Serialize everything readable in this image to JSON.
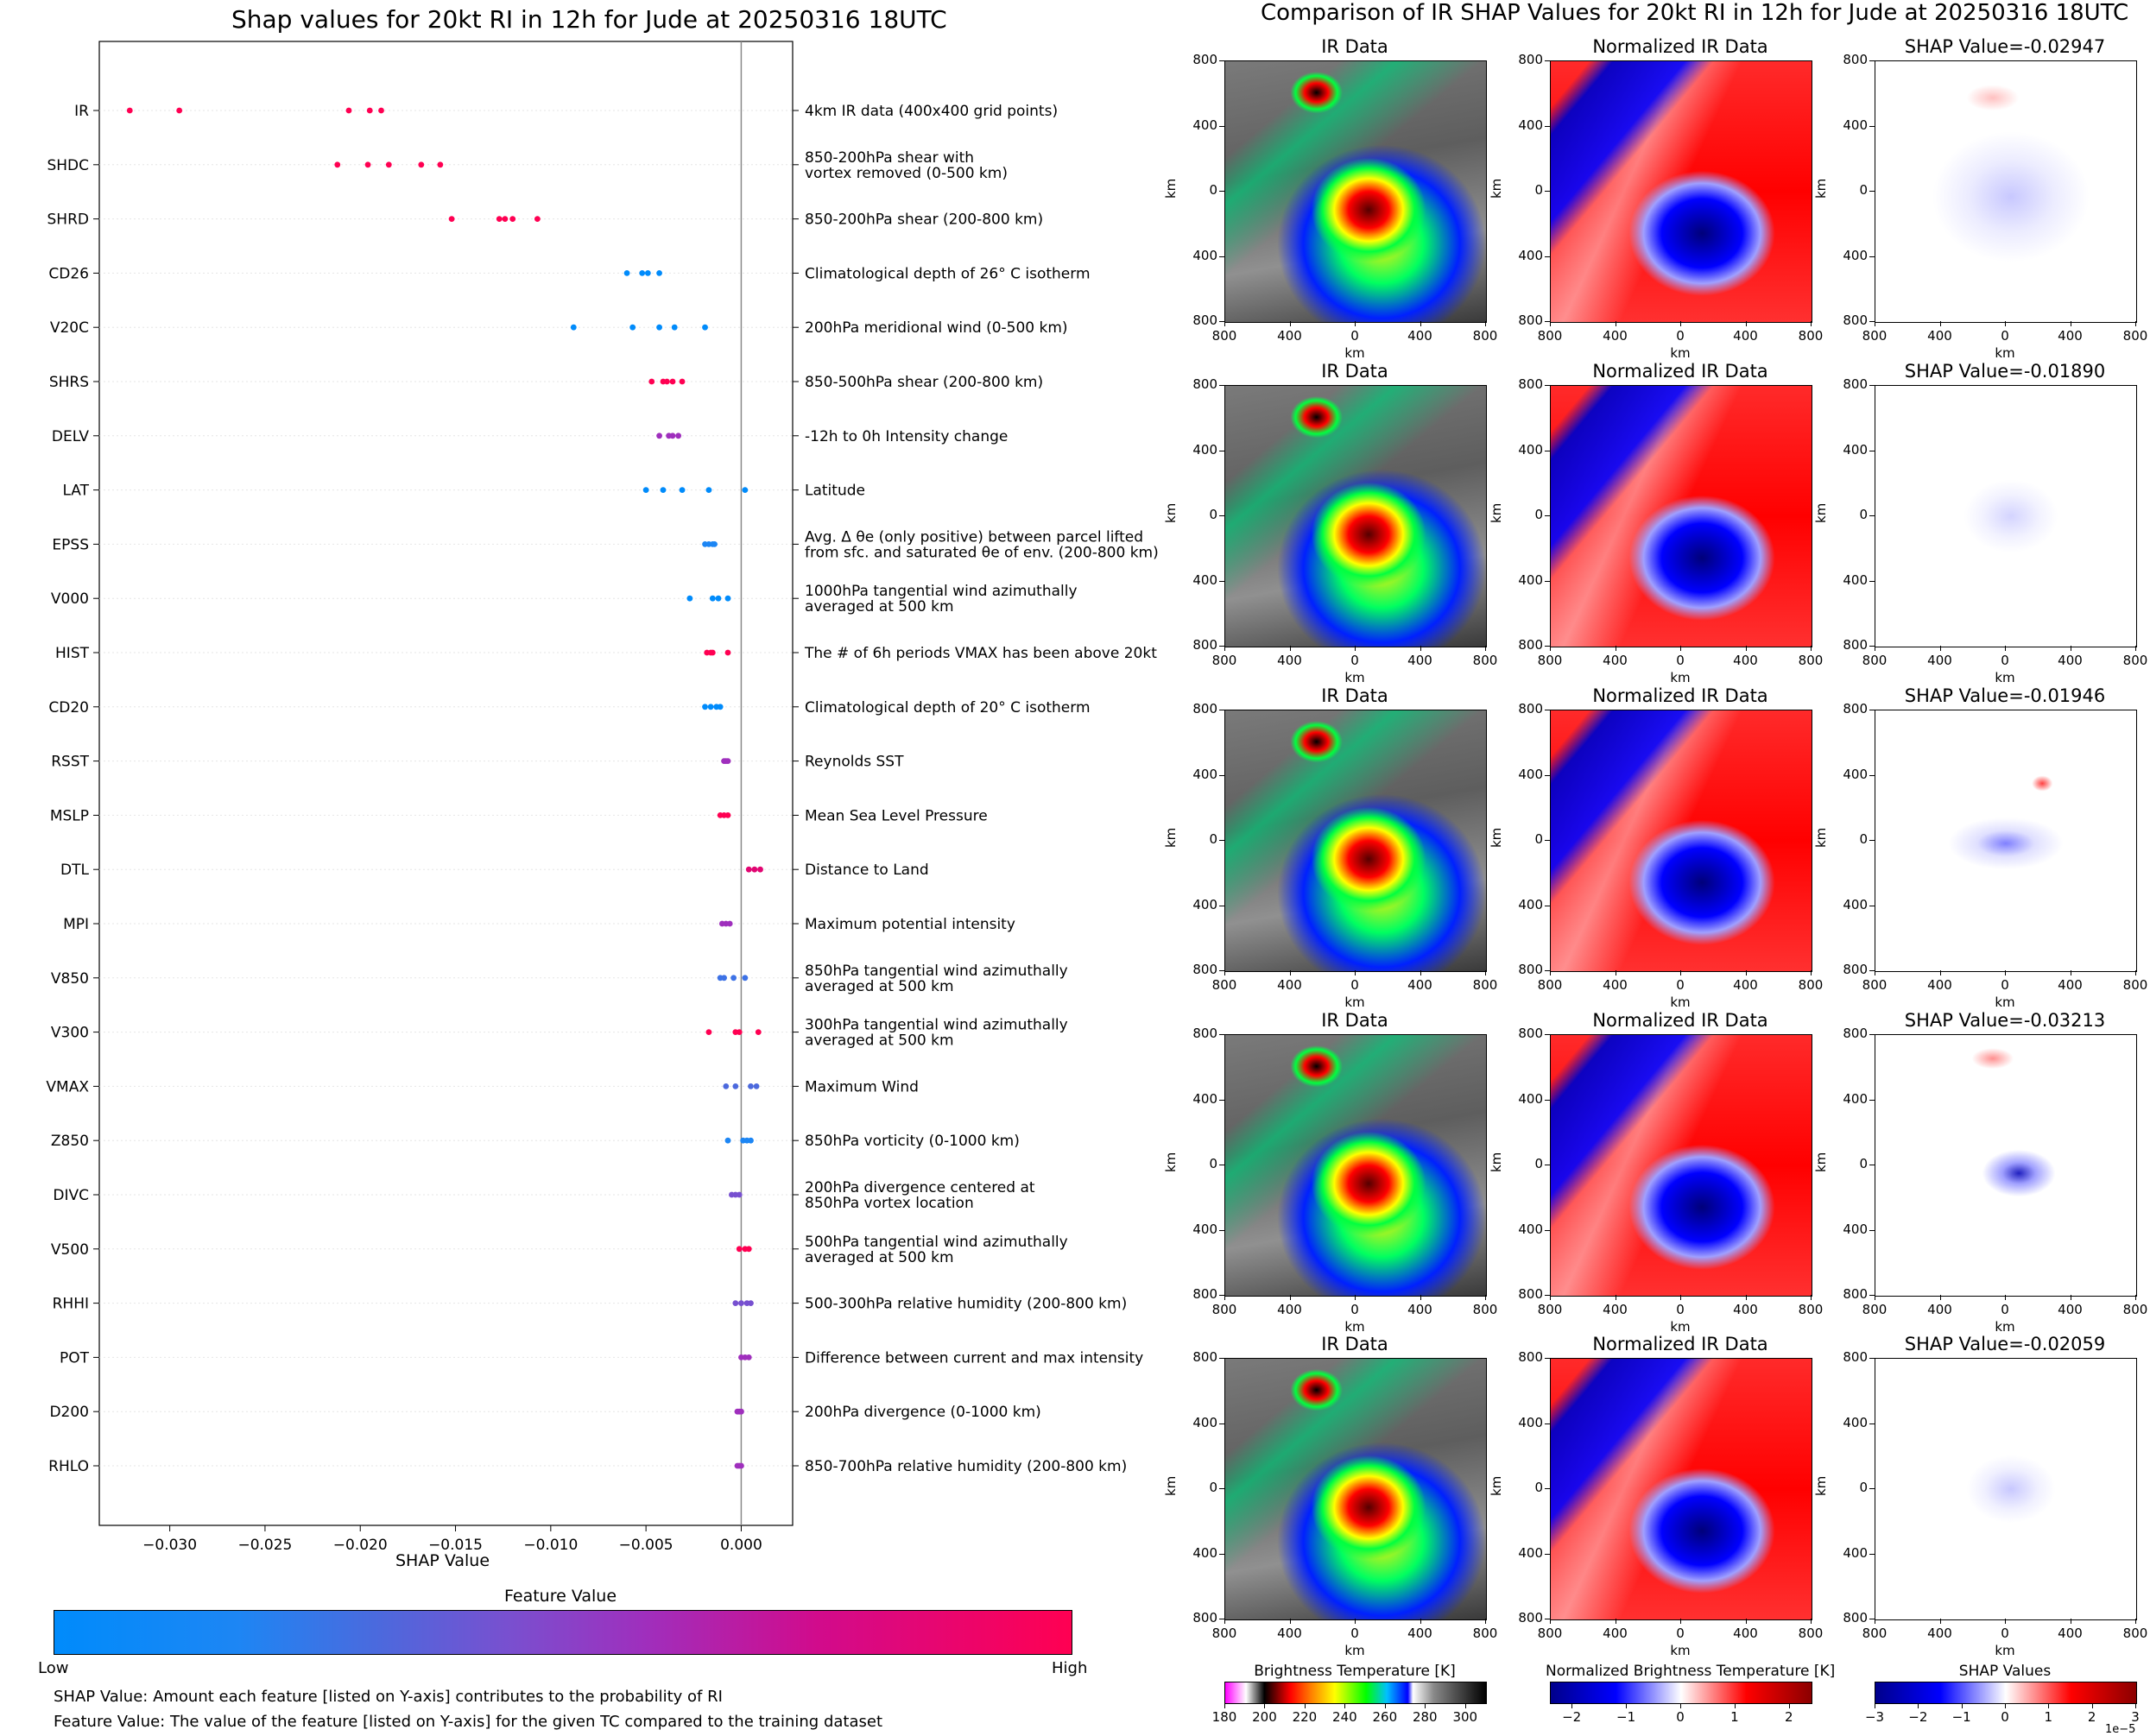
{
  "left_title": "Shap values for 20kt RI in 12h for Jude at 20250316 18UTC",
  "right_title": "Comparison of IR SHAP Values for 20kt RI in 12h for Jude at 20250316 18UTC",
  "chart_data": [
    {
      "type": "scatter",
      "title": "Shap values for 20kt RI in 12h for Jude at 20250316 18UTC",
      "xlabel": "SHAP Value",
      "xlim": [
        -0.0337,
        0.0027
      ],
      "xticks": [
        "−0.030",
        "−0.025",
        "−0.020",
        "−0.015",
        "−0.010",
        "−0.005",
        "0.000"
      ],
      "colorbar": {
        "title": "Feature Value",
        "low_label": "Low",
        "high_label": "High",
        "low_color": "#008bfb",
        "high_color": "#ff0052"
      },
      "features": [
        {
          "name": "IR",
          "desc": "4km IR data (400x400 grid points)",
          "color": "#ff0052",
          "shap": [
            -0.0321,
            -0.0295,
            -0.0206,
            -0.0195,
            -0.0189
          ]
        },
        {
          "name": "SHDC",
          "desc": "850-200hPa shear with\nvortex removed (0-500 km)",
          "color": "#ff0052",
          "shap": [
            -0.0212,
            -0.0196,
            -0.0185,
            -0.0168,
            -0.0158
          ]
        },
        {
          "name": "SHRD",
          "desc": "850-200hPa shear (200-800 km)",
          "color": "#ff0052",
          "shap": [
            -0.0152,
            -0.0127,
            -0.0124,
            -0.012,
            -0.0107
          ]
        },
        {
          "name": "CD26",
          "desc": "Climatological depth of 26° C isotherm",
          "color": "#008bfb",
          "shap": [
            -0.006,
            -0.0052,
            -0.0049,
            -0.0043
          ]
        },
        {
          "name": "V20C",
          "desc": "200hPa meridional wind (0-500 km)",
          "color": "#008bfb",
          "shap": [
            -0.0088,
            -0.0057,
            -0.0043,
            -0.0035,
            -0.0019
          ]
        },
        {
          "name": "SHRS",
          "desc": "850-500hPa shear (200-800 km)",
          "color": "#ff0052",
          "shap": [
            -0.0047,
            -0.0041,
            -0.0039,
            -0.0036,
            -0.0031
          ]
        },
        {
          "name": "DELV",
          "desc": "-12h to 0h Intensity change",
          "color": "#9f2fbd",
          "shap": [
            -0.0043,
            -0.0038,
            -0.0036,
            -0.0033
          ]
        },
        {
          "name": "LAT",
          "desc": "Latitude",
          "color": "#008bfb",
          "shap": [
            -0.005,
            -0.0041,
            -0.0031,
            -0.0017,
            0.0002
          ]
        },
        {
          "name": "EPSS",
          "desc": "Avg. Δ θe (only positive) between parcel lifted\nfrom sfc. and saturated θe of env. (200-800 km)",
          "color": "#1d86f4",
          "shap": [
            -0.0019,
            -0.0017,
            -0.0015,
            -0.0014
          ]
        },
        {
          "name": "V000",
          "desc": "1000hPa tangential wind azimuthally\naveraged at 500 km",
          "color": "#008bfb",
          "shap": [
            -0.0027,
            -0.0015,
            -0.0012,
            -0.0007
          ]
        },
        {
          "name": "HIST",
          "desc": "The # of 6h periods VMAX has been above 20kt",
          "color": "#ff0052",
          "shap": [
            -0.0018,
            -0.0016,
            -0.0015,
            -0.0007
          ]
        },
        {
          "name": "CD20",
          "desc": "Climatological depth of 20° C isotherm",
          "color": "#008bfb",
          "shap": [
            -0.0019,
            -0.0016,
            -0.0013,
            -0.0011
          ]
        },
        {
          "name": "RSST",
          "desc": "Reynolds SST",
          "color": "#9f2fbd",
          "shap": [
            -0.0009,
            -0.0008,
            -0.0007
          ]
        },
        {
          "name": "MSLP",
          "desc": "Mean Sea Level Pressure",
          "color": "#ff0052",
          "shap": [
            -0.0011,
            -0.0009,
            -0.0007
          ]
        },
        {
          "name": "DTL",
          "desc": "Distance to Land",
          "color": "#e10672",
          "shap": [
            0.0004,
            0.0007,
            0.001
          ]
        },
        {
          "name": "MPI",
          "desc": "Maximum potential intensity",
          "color": "#9f2fbd",
          "shap": [
            -0.001,
            -0.0008,
            -0.0006
          ]
        },
        {
          "name": "V850",
          "desc": "850hPa tangential wind azimuthally\naveraged at 500 km",
          "color": "#3d72e6",
          "shap": [
            -0.0011,
            -0.0009,
            -0.0004,
            0.0002
          ]
        },
        {
          "name": "V300",
          "desc": "300hPa tangential wind azimuthally\naveraged at 500 km",
          "color": "#ff0052",
          "shap": [
            -0.0017,
            -0.0003,
            -0.0001,
            0.0009
          ]
        },
        {
          "name": "VMAX",
          "desc": "Maximum Wind",
          "color": "#4c69dd",
          "shap": [
            -0.0008,
            -0.0003,
            0.0005,
            0.0008
          ]
        },
        {
          "name": "Z850",
          "desc": "850hPa vorticity (0-1000 km)",
          "color": "#1d86f4",
          "shap": [
            -0.0007,
            0.0001,
            0.0003,
            0.0005
          ]
        },
        {
          "name": "DIVC",
          "desc": "200hPa divergence centered at\n850hPa vortex location",
          "color": "#7750d0",
          "shap": [
            -0.0005,
            -0.0003,
            -0.0001
          ]
        },
        {
          "name": "V500",
          "desc": "500hPa tangential wind azimuthally\naveraged at 500 km",
          "color": "#ff0052",
          "shap": [
            -0.0001,
            0.0002,
            0.0004
          ]
        },
        {
          "name": "RHHI",
          "desc": "500-300hPa relative humidity (200-800 km)",
          "color": "#7750d0",
          "shap": [
            -0.0003,
            0.0,
            0.0003,
            0.0005
          ]
        },
        {
          "name": "POT",
          "desc": "Difference between current and max intensity",
          "color": "#9f2fbd",
          "shap": [
            0.0,
            0.0002,
            0.0004
          ]
        },
        {
          "name": "D200",
          "desc": "200hPa divergence (0-1000 km)",
          "color": "#9f2fbd",
          "shap": [
            -0.0002,
            -0.0001,
            0.0
          ]
        },
        {
          "name": "RHLO",
          "desc": "850-700hPa relative humidity (200-800 km)",
          "color": "#9f2fbd",
          "shap": [
            -0.0002,
            -0.0001,
            0.0
          ]
        }
      ]
    },
    {
      "type": "heatmap",
      "title": "Comparison of IR SHAP Values for 20kt RI in 12h for Jude at 20250316 18UTC",
      "axis_label": "km",
      "tick_labels": [
        "800",
        "400",
        "0",
        "400",
        "800"
      ],
      "column_titles": [
        "IR Data",
        "Normalized IR Data"
      ],
      "shap_titles": [
        "SHAP Value=-0.02947",
        "SHAP Value=-0.01890",
        "SHAP Value=-0.01946",
        "SHAP Value=-0.03213",
        "SHAP Value=-0.02059"
      ],
      "colorbars": [
        {
          "title": "Brightness Temperature [K]",
          "ticks": [
            "180",
            "200",
            "220",
            "240",
            "260",
            "280",
            "300"
          ],
          "range": [
            180,
            310
          ]
        },
        {
          "title": "Normalized Brightness Temperature [K]",
          "ticks": [
            "−2",
            "−1",
            "0",
            "1",
            "2"
          ],
          "range": [
            -2.4,
            2.4
          ]
        },
        {
          "title": "SHAP Values",
          "ticks": [
            "−3",
            "−2",
            "−1",
            "0",
            "1",
            "2",
            "3"
          ],
          "range": [
            -3,
            3
          ],
          "offset_text": "1e−5"
        }
      ]
    }
  ],
  "footnotes": {
    "line1": "SHAP Value: Amount each feature [listed on Y-axis] contributes to the probability of RI",
    "line2": "Feature Value: The value of the feature [listed on Y-axis] for the given TC compared to the training dataset"
  }
}
